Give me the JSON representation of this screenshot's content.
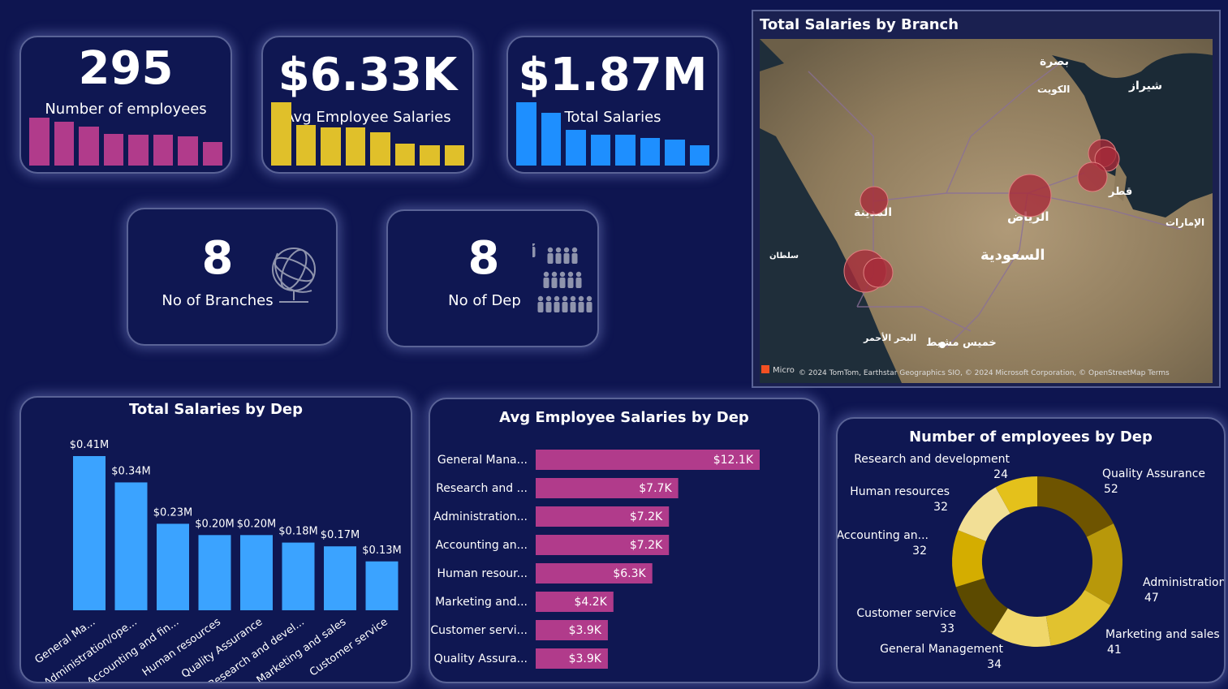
{
  "kpis": {
    "employees": {
      "value": "295",
      "label": "Number of employees",
      "bars": [
        0.85,
        0.77,
        0.68,
        0.56,
        0.54,
        0.54,
        0.52,
        0.41
      ],
      "color": "#b13b8b"
    },
    "avg_salary": {
      "value": "$6.33K",
      "label": "Avg Employee Salaries",
      "bars": [
        1.0,
        0.64,
        0.6,
        0.6,
        0.52,
        0.35,
        0.32,
        0.32
      ],
      "color": "#e0c02a"
    },
    "total_salary": {
      "value": "$1.87M",
      "label": "Total Salaries",
      "bars": [
        1.0,
        0.83,
        0.56,
        0.49,
        0.49,
        0.44,
        0.41,
        0.32
      ],
      "color": "#1e8fff"
    }
  },
  "cards": {
    "branches": {
      "value": "8",
      "label": "No of Branches",
      "icon": "globe-icon"
    },
    "departments": {
      "value": "8",
      "label": "No of Dep",
      "icon": "people-group-icon"
    }
  },
  "map": {
    "title": "Total Salaries by Branch",
    "labels": [
      {
        "text": "بصرة"
      },
      {
        "text": "الكويت"
      },
      {
        "text": "شيراز"
      },
      {
        "text": "قطر"
      },
      {
        "text": "الإمارات"
      },
      {
        "text": "المدينة"
      },
      {
        "text": "الرياض"
      },
      {
        "text": "السعودية"
      },
      {
        "text": "البحر الأحمر"
      },
      {
        "text": "خميس مشيط"
      },
      {
        "text": "سلطان"
      }
    ],
    "attribution": "© 2024 TomTom, Earthstar Geographics SIO, © 2024 Microsoft Corporation, © OpenStreetMap Terms",
    "logo_text": "Micro"
  },
  "total_by_dep": {
    "title": "Total Salaries by Dep",
    "chart_data": {
      "type": "bar",
      "categories": [
        "General Ma...",
        "Administration/ope...",
        "Accounting and fin...",
        "Human resources",
        "Quality Assurance",
        "Research and devel...",
        "Marketing and sales",
        "Customer service"
      ],
      "values": [
        0.41,
        0.34,
        0.23,
        0.2,
        0.2,
        0.18,
        0.17,
        0.13
      ],
      "labels": [
        "$0.41M",
        "$0.34M",
        "$0.23M",
        "$0.20M",
        "$0.20M",
        "$0.18M",
        "$0.17M",
        "$0.13M"
      ],
      "color": "#3ba3ff"
    }
  },
  "avg_by_dep": {
    "title": "Avg Employee Salaries by Dep",
    "chart_data": {
      "type": "bar",
      "categories": [
        "General Mana...",
        "Research and ...",
        "Administration...",
        "Accounting an...",
        "Human resour...",
        "Marketing and...",
        "Customer servi...",
        "Quality Assura..."
      ],
      "values": [
        12.1,
        7.7,
        7.2,
        7.2,
        6.3,
        4.2,
        3.9,
        3.9
      ],
      "labels": [
        "$12.1K",
        "$7.7K",
        "$7.2K",
        "$7.2K",
        "$6.3K",
        "$4.2K",
        "$3.9K",
        "$3.9K"
      ],
      "color": "#b13b8b"
    }
  },
  "emp_by_dep": {
    "title": "Number of employees by Dep",
    "chart_data": {
      "type": "pie",
      "categories": [
        "Quality Assurance",
        "Administration...",
        "Marketing and sales",
        "General Management",
        "Customer service",
        "Accounting an...",
        "Human resources",
        "Research and development"
      ],
      "values": [
        52,
        47,
        41,
        34,
        33,
        32,
        32,
        24
      ],
      "colors": [
        "#6e5400",
        "#b8980a",
        "#e1c22f",
        "#f0d76a",
        "#5c4a00",
        "#d4ad00",
        "#f2df96",
        "#e4c11b"
      ]
    }
  }
}
